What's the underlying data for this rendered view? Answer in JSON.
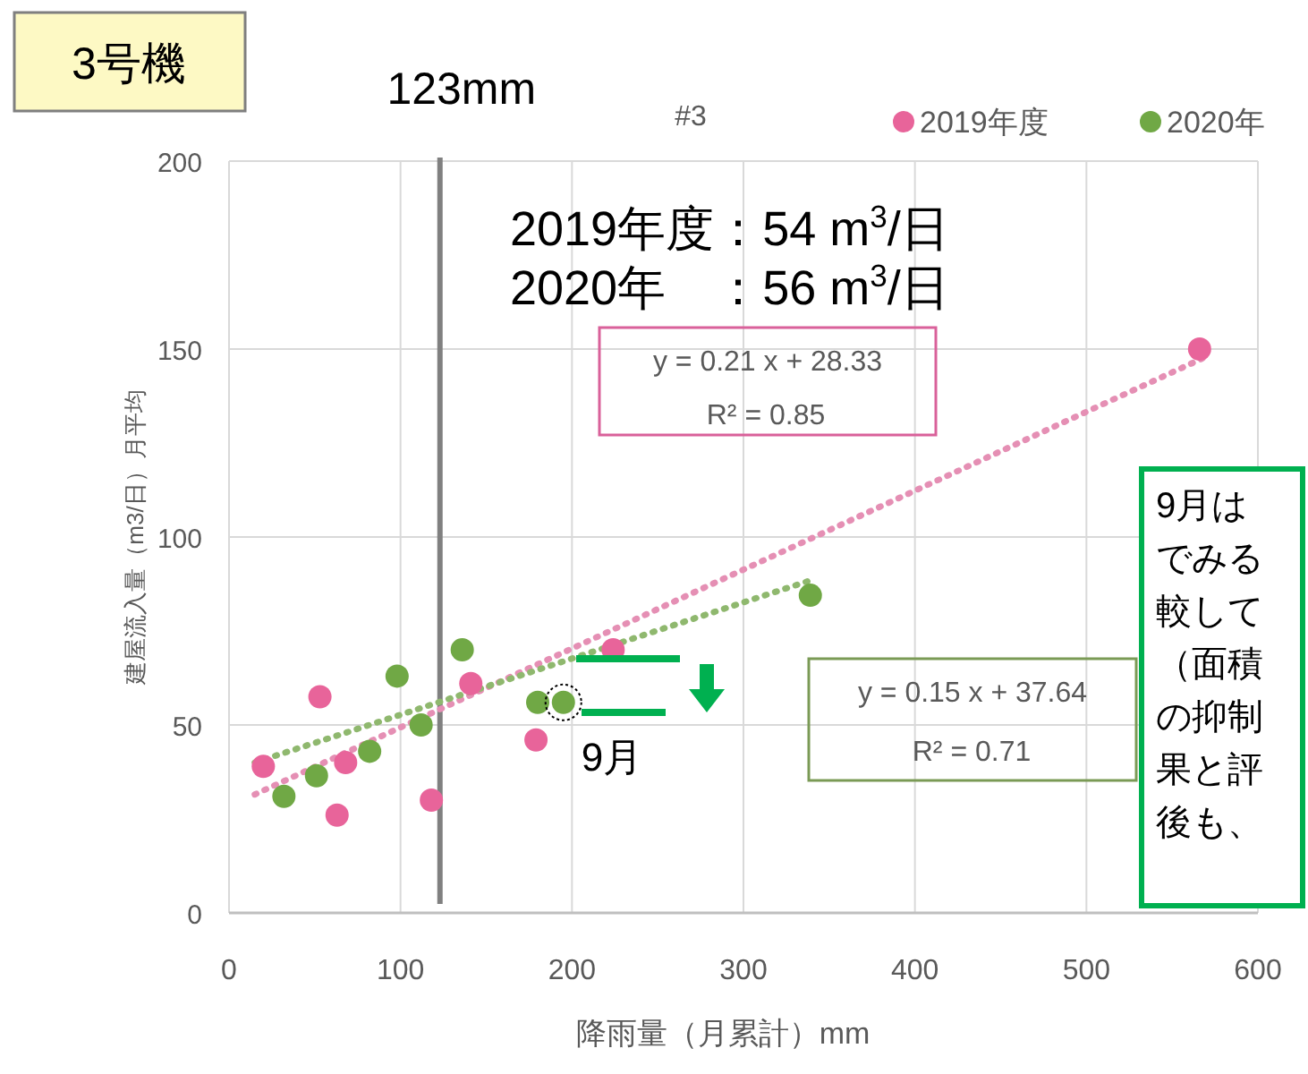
{
  "chart_data": {
    "type": "scatter",
    "title": "#3",
    "subtitle": "3号機",
    "xlabel": "降雨量（月累計）mm",
    "ylabel": "建屋流入量（m3/日）月平均",
    "xlim": [
      0,
      600
    ],
    "ylim": [
      0,
      200
    ],
    "xticks": [
      0,
      100,
      200,
      300,
      400,
      500,
      600
    ],
    "yticks": [
      0,
      50,
      100,
      150,
      200
    ],
    "grid": true,
    "legend": "top right",
    "marker": "circle",
    "series": [
      {
        "name": "2019年度",
        "color": "#e8649a",
        "x": [
          20,
          53,
          63,
          68,
          118,
          141,
          179,
          224,
          566
        ],
        "values": [
          39,
          57.5,
          26,
          40,
          30,
          61,
          46,
          70,
          150
        ]
      },
      {
        "name": "2020年",
        "color": "#70a845",
        "x": [
          32,
          51,
          82,
          98,
          112,
          136,
          180,
          195,
          339
        ],
        "values": [
          31,
          36.5,
          43,
          63,
          50,
          70,
          56,
          56,
          84.5
        ]
      },
      {
        "type": "line",
        "color": "#e58fb4",
        "line_style": "dotted",
        "marker": "none",
        "x": [
          15,
          570
        ],
        "values": [
          31.5,
          148
        ]
      },
      {
        "type": "line",
        "color": "#8fb86e",
        "line_style": "dotted",
        "marker": "none",
        "x": [
          15,
          340
        ],
        "values": [
          40,
          88.6
        ]
      }
    ],
    "ref_lines": [
      {
        "axis": "x",
        "value": 123,
        "label": "123mm",
        "color": "#808080"
      }
    ],
    "annotations": [
      "2019年度：54 m$^{3}$/日",
      "2020年　：56 m$^{3}$/日",
      "y = 0.21 x + 28.33",
      "R² = 0.85",
      "y = 0.15 x + 37.64",
      "R² = 0.71",
      {
        "text": "9月",
        "x": 195,
        "y": 56
      },
      "9月は",
      "でみる",
      "較して",
      "（面積",
      "の抑制",
      "果と評",
      "後も、"
    ]
  }
}
